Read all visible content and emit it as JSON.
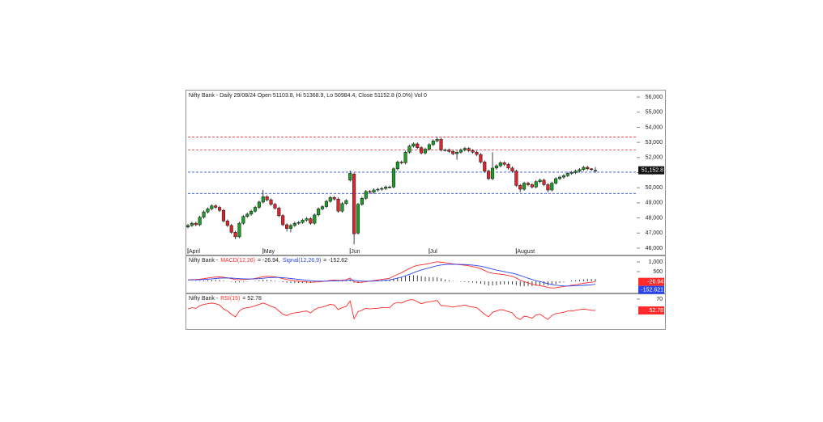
{
  "chart_data": [
    {
      "type": "candlestick",
      "title": "Nifty Bank - Daily 29/08/24 Open 51103.8, Hi 51368.9, Lo 50984.4, Close 51152.8 (0.0%) Vol 0",
      "categories": [
        "April",
        null,
        null,
        null,
        null,
        null,
        null,
        null,
        null,
        null,
        null,
        null,
        null,
        null,
        null,
        null,
        null,
        null,
        null,
        "May",
        null,
        null,
        null,
        null,
        null,
        null,
        null,
        null,
        null,
        null,
        null,
        null,
        null,
        null,
        null,
        null,
        null,
        null,
        null,
        null,
        null,
        "Jun",
        null,
        null,
        null,
        null,
        null,
        null,
        null,
        null,
        null,
        null,
        null,
        null,
        null,
        null,
        null,
        null,
        null,
        null,
        null,
        "Jul",
        null,
        null,
        null,
        null,
        null,
        null,
        null,
        null,
        null,
        null,
        null,
        null,
        null,
        null,
        null,
        null,
        null,
        null,
        null,
        null,
        null,
        "August",
        null,
        null,
        null,
        null,
        null,
        null,
        null,
        null,
        null,
        null,
        null,
        null,
        null,
        null,
        null,
        null,
        null,
        null,
        null,
        null
      ],
      "open": [
        47400,
        47500,
        47650,
        47550,
        48050,
        48400,
        48600,
        48800,
        48700,
        48500,
        47800,
        47500,
        47050,
        46750,
        47650,
        48100,
        48250,
        48450,
        48700,
        49050,
        49400,
        49200,
        48900,
        48650,
        48150,
        47550,
        47300,
        47500,
        47650,
        47700,
        47850,
        47950,
        47650,
        48200,
        48600,
        48750,
        49100,
        49350,
        49250,
        48450,
        48950,
        50500,
        50900,
        47000,
        48900,
        49300,
        49750,
        49700,
        49850,
        49900,
        49950,
        50050,
        50050,
        51250,
        51700,
        51650,
        52350,
        52750,
        52900,
        52650,
        52300,
        52550,
        52850,
        53100,
        53200,
        52500,
        52500,
        52400,
        52250,
        52350,
        52500,
        52600,
        52450,
        52350,
        52200,
        51700,
        51100,
        50600,
        51300,
        51450,
        51650,
        51550,
        51300,
        51100,
        50150,
        49900,
        50300,
        50200,
        50050,
        50400,
        50500,
        50200,
        49850,
        50300,
        50600,
        50700,
        50800,
        50950,
        51000,
        51100,
        51200,
        51350,
        51250,
        51103.8
      ],
      "high": [
        47600,
        47750,
        47750,
        48150,
        48500,
        48700,
        48900,
        48900,
        48800,
        48600,
        47900,
        47600,
        47150,
        47750,
        48200,
        48350,
        48550,
        48800,
        49150,
        49850,
        49500,
        49300,
        49000,
        48750,
        48250,
        47650,
        47600,
        47750,
        47800,
        47950,
        48050,
        48050,
        48300,
        48700,
        48850,
        49200,
        49450,
        49450,
        49350,
        49050,
        49250,
        51130,
        51000,
        49000,
        49400,
        49850,
        49850,
        49950,
        50000,
        50050,
        50150,
        50150,
        51350,
        51800,
        51800,
        52450,
        52850,
        53000,
        53000,
        52750,
        52650,
        52950,
        53200,
        53350,
        53300,
        52600,
        52600,
        52500,
        52450,
        52600,
        52700,
        52700,
        52550,
        52450,
        52300,
        51800,
        51200,
        52350,
        51550,
        51750,
        51750,
        51650,
        51400,
        51200,
        50250,
        50400,
        50400,
        50300,
        50500,
        50600,
        50600,
        50300,
        50400,
        50700,
        50800,
        50900,
        51050,
        51100,
        51200,
        51300,
        51450,
        51450,
        51300,
        51368.9
      ],
      "low": [
        47300,
        47400,
        47450,
        47450,
        47950,
        48300,
        48500,
        48600,
        48400,
        47700,
        47400,
        46950,
        46600,
        46650,
        47550,
        48000,
        48150,
        48350,
        48600,
        48950,
        49100,
        48800,
        48550,
        48050,
        47450,
        47100,
        47050,
        47400,
        47550,
        47600,
        47750,
        47550,
        47550,
        48100,
        48500,
        48650,
        49000,
        49150,
        48350,
        48350,
        48850,
        50400,
        46250,
        46900,
        48800,
        49200,
        49600,
        49600,
        49750,
        49800,
        49850,
        49950,
        49950,
        51150,
        51550,
        51550,
        52250,
        52650,
        52550,
        52200,
        52200,
        52450,
        52750,
        53000,
        52400,
        52400,
        52300,
        52150,
        51850,
        52250,
        52400,
        52350,
        52250,
        52100,
        51600,
        51000,
        50500,
        50500,
        51200,
        51350,
        51450,
        51200,
        51000,
        50050,
        49700,
        49800,
        50100,
        49950,
        49950,
        50300,
        50100,
        49700,
        49750,
        50200,
        50500,
        50600,
        50700,
        50850,
        50900,
        51000,
        51100,
        51150,
        51100,
        50984.4
      ],
      "close": [
        47500,
        47650,
        47550,
        48050,
        48400,
        48600,
        48800,
        48700,
        48500,
        47800,
        47500,
        47050,
        46750,
        47650,
        48100,
        48250,
        48450,
        48700,
        49050,
        49400,
        49200,
        48900,
        48650,
        48150,
        47550,
        47300,
        47500,
        47650,
        47700,
        47850,
        47950,
        47650,
        48200,
        48600,
        48750,
        49100,
        49350,
        49250,
        48450,
        48950,
        49150,
        50950,
        46950,
        48900,
        49300,
        49750,
        49700,
        49850,
        49900,
        49950,
        50050,
        50050,
        51250,
        51700,
        51650,
        52350,
        52750,
        52900,
        52650,
        52300,
        52550,
        52850,
        53100,
        53200,
        52500,
        52500,
        52400,
        52250,
        52350,
        52500,
        52600,
        52450,
        52350,
        52200,
        51700,
        51100,
        50600,
        51300,
        51450,
        51650,
        51550,
        51300,
        51100,
        50150,
        49900,
        50300,
        50200,
        50050,
        50400,
        50500,
        50200,
        49850,
        50300,
        50600,
        50700,
        50800,
        50950,
        51000,
        51100,
        51200,
        51350,
        51250,
        51200,
        51152.8
      ],
      "up_color": "#1e9e28",
      "down_color": "#e0242a",
      "ylim": [
        45570,
        56430
      ],
      "yticks": [
        {
          "value": 46000,
          "label": "46,000"
        },
        {
          "value": 47000,
          "label": "47,000"
        },
        {
          "value": 48000,
          "label": "48,000"
        },
        {
          "value": 49000,
          "label": "49,000"
        },
        {
          "value": 50000,
          "label": "50,000"
        },
        {
          "value": 51000,
          "label": "51,000"
        },
        {
          "value": 52000,
          "label": "52,000"
        },
        {
          "value": 53000,
          "label": "53,000"
        },
        {
          "value": 54000,
          "label": "54,000"
        },
        {
          "value": 55000,
          "label": "55,000"
        },
        {
          "value": 56000,
          "label": "56,000"
        }
      ],
      "hlines": [
        {
          "value": 53350,
          "color": "#e83030"
        },
        {
          "value": 52490,
          "color": "#e83030"
        },
        {
          "value": 51030,
          "color": "#3050e0"
        },
        {
          "value": 49620,
          "color": "#3050e0"
        }
      ],
      "last_label": "51,152.8"
    },
    {
      "type": "macd",
      "title": "Nifty Bank -",
      "series": [
        {
          "name": "MACD(12,26)",
          "legend_value": "= -26.94,",
          "last_label": "-26.94",
          "color": "#ff2a2a",
          "values": [
            80,
            90,
            95,
            110,
            140,
            170,
            200,
            220,
            230,
            210,
            180,
            140,
            90,
            80,
            90,
            100,
            120,
            150,
            190,
            240,
            260,
            250,
            230,
            190,
            140,
            90,
            60,
            30,
            10,
            -10,
            -30,
            -50,
            -40,
            -30,
            -10,
            20,
            50,
            70,
            50,
            60,
            80,
            170,
            -20,
            -60,
            -50,
            -20,
            10,
            40,
            70,
            100,
            130,
            160,
            260,
            360,
            440,
            560,
            660,
            760,
            820,
            850,
            880,
            920,
            970,
            1010,
            990,
            960,
            930,
            900,
            870,
            850,
            830,
            800,
            760,
            720,
            650,
            560,
            460,
            420,
            390,
            370,
            340,
            300,
            260,
            170,
            60,
            -20,
            -80,
            -150,
            -190,
            -220,
            -260,
            -320,
            -340,
            -330,
            -300,
            -270,
            -240,
            -200,
            -170,
            -140,
            -100,
            -70,
            -45,
            -26.94
          ]
        },
        {
          "name": "Signal(12,26,9)",
          "legend_value": "= -152.62",
          "last_label": "-152.621",
          "color": "#2a44f0",
          "values": [
            70,
            74,
            78,
            84,
            95,
            110,
            128,
            146,
            163,
            172,
            174,
            167,
            152,
            138,
            128,
            122,
            122,
            128,
            140,
            160,
            180,
            194,
            201,
            199,
            187,
            168,
            146,
            123,
            101,
            79,
            57,
            35,
            20,
            10,
            6,
            9,
            17,
            28,
            32,
            38,
            46,
            71,
            53,
            30,
            14,
            7,
            8,
            14,
            25,
            40,
            58,
            78,
            115,
            164,
            219,
            287,
            362,
            441,
            517,
            584,
            643,
            698,
            752,
            804,
            841,
            865,
            878,
            882,
            880,
            874,
            865,
            852,
            834,
            811,
            779,
            735,
            680,
            628,
            580,
            538,
            498,
            458,
            418,
            368,
            300,
            230,
            160,
            95,
            35,
            -15,
            -65,
            -115,
            -160,
            -195,
            -220,
            -235,
            -240,
            -238,
            -232,
            -222,
            -208,
            -192,
            -172,
            -152.62
          ]
        }
      ],
      "histogram": {
        "color": "#111111",
        "values": [
          10,
          16,
          17,
          26,
          45,
          60,
          72,
          74,
          67,
          38,
          6,
          -27,
          -62,
          -58,
          -38,
          -22,
          -2,
          22,
          50,
          80,
          80,
          56,
          29,
          -9,
          -47,
          -78,
          -86,
          -93,
          -91,
          -89,
          -87,
          -85,
          -60,
          -40,
          -16,
          11,
          33,
          42,
          18,
          22,
          34,
          99,
          -73,
          -90,
          -64,
          -27,
          2,
          26,
          45,
          60,
          72,
          82,
          145,
          196,
          221,
          273,
          298,
          319,
          303,
          266,
          237,
          222,
          218,
          206,
          149,
          95,
          52,
          18,
          -10,
          -24,
          -35,
          -52,
          -74,
          -91,
          -129,
          -175,
          -220,
          -208,
          -190,
          -168,
          -158,
          -158,
          -158,
          -198,
          -240,
          -250,
          -240,
          -245,
          -225,
          -205,
          -195,
          -205,
          -180,
          -135,
          -80,
          -35,
          0,
          38,
          62,
          82,
          108,
          122,
          127,
          125.68
        ]
      },
      "ylim": [
        -583,
        1292
      ],
      "yticks": [
        {
          "value": 1000,
          "label": "1,000"
        },
        500
      ]
    },
    {
      "type": "rsi",
      "title": "Nifty Bank -",
      "series": [
        {
          "name": "RSI(15)",
          "legend_value": "= 52.78",
          "last_label": "52.78",
          "color": "#ff2a2a",
          "values": [
            55,
            57,
            56,
            60,
            62,
            63,
            64,
            63,
            61,
            55,
            52,
            47,
            43,
            52,
            56,
            57,
            58,
            60,
            62,
            64,
            62,
            59,
            57,
            52,
            47,
            45,
            48,
            49,
            50,
            51,
            52,
            49,
            54,
            57,
            58,
            60,
            62,
            61,
            54,
            57,
            59,
            67,
            40,
            51,
            53,
            56,
            55,
            56,
            56,
            57,
            57,
            57,
            63,
            65,
            64,
            67,
            69,
            69,
            66,
            63,
            65,
            66,
            67,
            68,
            60,
            60,
            59,
            58,
            59,
            60,
            61,
            59,
            58,
            57,
            52,
            47,
            43,
            50,
            52,
            54,
            53,
            51,
            49,
            42,
            39,
            44,
            43,
            41,
            46,
            47,
            43,
            39,
            45,
            48,
            49,
            50,
            52,
            52,
            53,
            54,
            55,
            54,
            53,
            52.78
          ]
        }
      ],
      "ylim": [
        24.5,
        77.4
      ],
      "yticks": [
        70
      ]
    }
  ]
}
